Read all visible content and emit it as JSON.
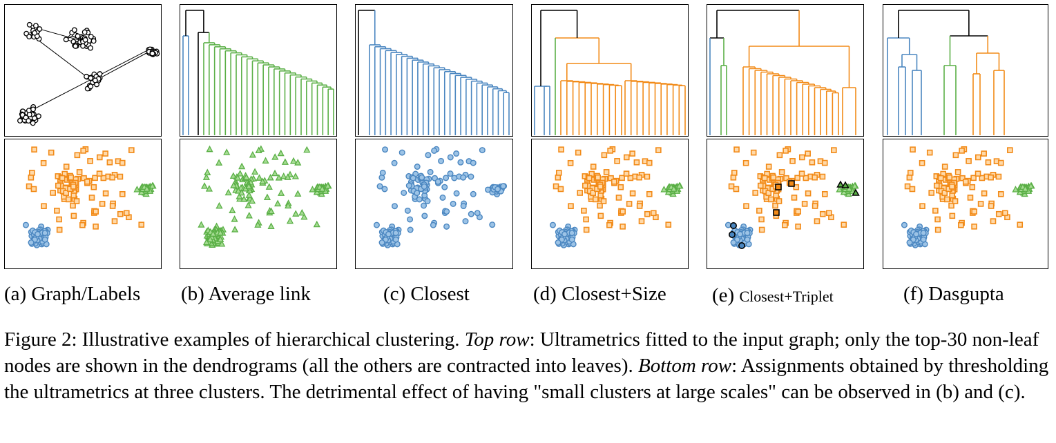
{
  "figure": {
    "panels": [
      {
        "id": "a",
        "label": "(a) Graph/Labels",
        "label_small": ""
      },
      {
        "id": "b",
        "label": "(b) Average link",
        "label_small": ""
      },
      {
        "id": "c",
        "label": "(c) Closest",
        "label_small": ""
      },
      {
        "id": "d",
        "label": "(d) Closest+Size",
        "label_small": ""
      },
      {
        "id": "e",
        "label": "(e) ",
        "label_small": "Closest+Triplet"
      },
      {
        "id": "f",
        "label": "(f) Dasgupta",
        "label_small": ""
      }
    ],
    "colors": {
      "blue": "#4a86c0",
      "orange": "#f28a17",
      "green": "#5aaf46",
      "black": "#000000"
    },
    "caption": {
      "prefix": "Figure 2: Illustrative examples of hierarchical clustering. ",
      "top_label": "Top row",
      "top_text": ": Ultrametrics fitted to the input graph; only the top-30 non-leaf nodes are shown in the dendrograms (all the others are contracted into leaves). ",
      "bottom_label": "Bottom row",
      "bottom_text": ": Assignments obtained by thresholding the ultrametrics at three clusters. The detrimental effect of having \"small clusters at large scales\" can be observed in (b) and (c)."
    }
  }
}
